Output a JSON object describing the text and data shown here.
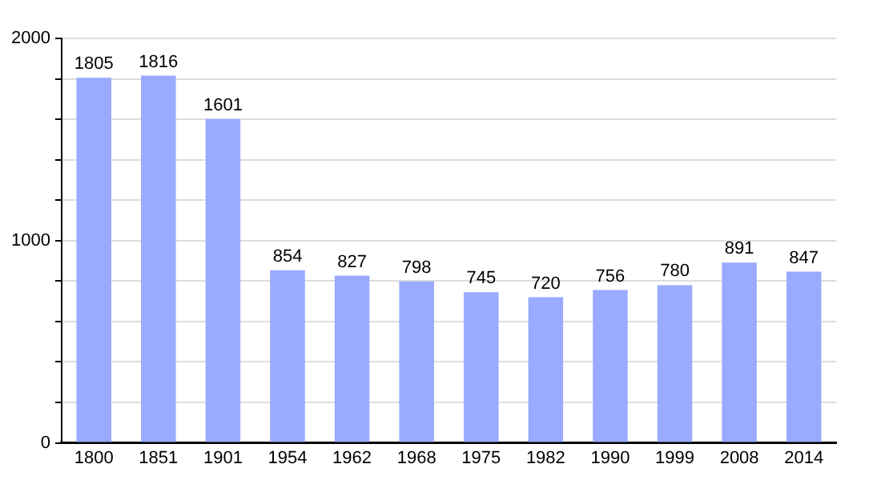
{
  "chart_data": {
    "type": "bar",
    "categories": [
      "1800",
      "1851",
      "1901",
      "1954",
      "1962",
      "1968",
      "1975",
      "1982",
      "1990",
      "1999",
      "2008",
      "2014"
    ],
    "values": [
      1805,
      1816,
      1601,
      854,
      827,
      798,
      745,
      720,
      756,
      780,
      891,
      847
    ],
    "color": "#99aaff",
    "ylim": [
      0,
      2000
    ],
    "yticks": [
      0,
      {
        "value": 200,
        "label": null
      },
      {
        "value": 400,
        "label": null
      },
      {
        "value": 600,
        "label": null
      },
      {
        "value": 800,
        "label": null
      },
      1000,
      {
        "value": 1200,
        "label": null
      },
      {
        "value": 1400,
        "label": null
      },
      {
        "value": 1600,
        "label": null
      },
      {
        "value": 1800,
        "label": null
      },
      2000
    ],
    "grid": "y",
    "legend": false,
    "data_labels": true
  }
}
